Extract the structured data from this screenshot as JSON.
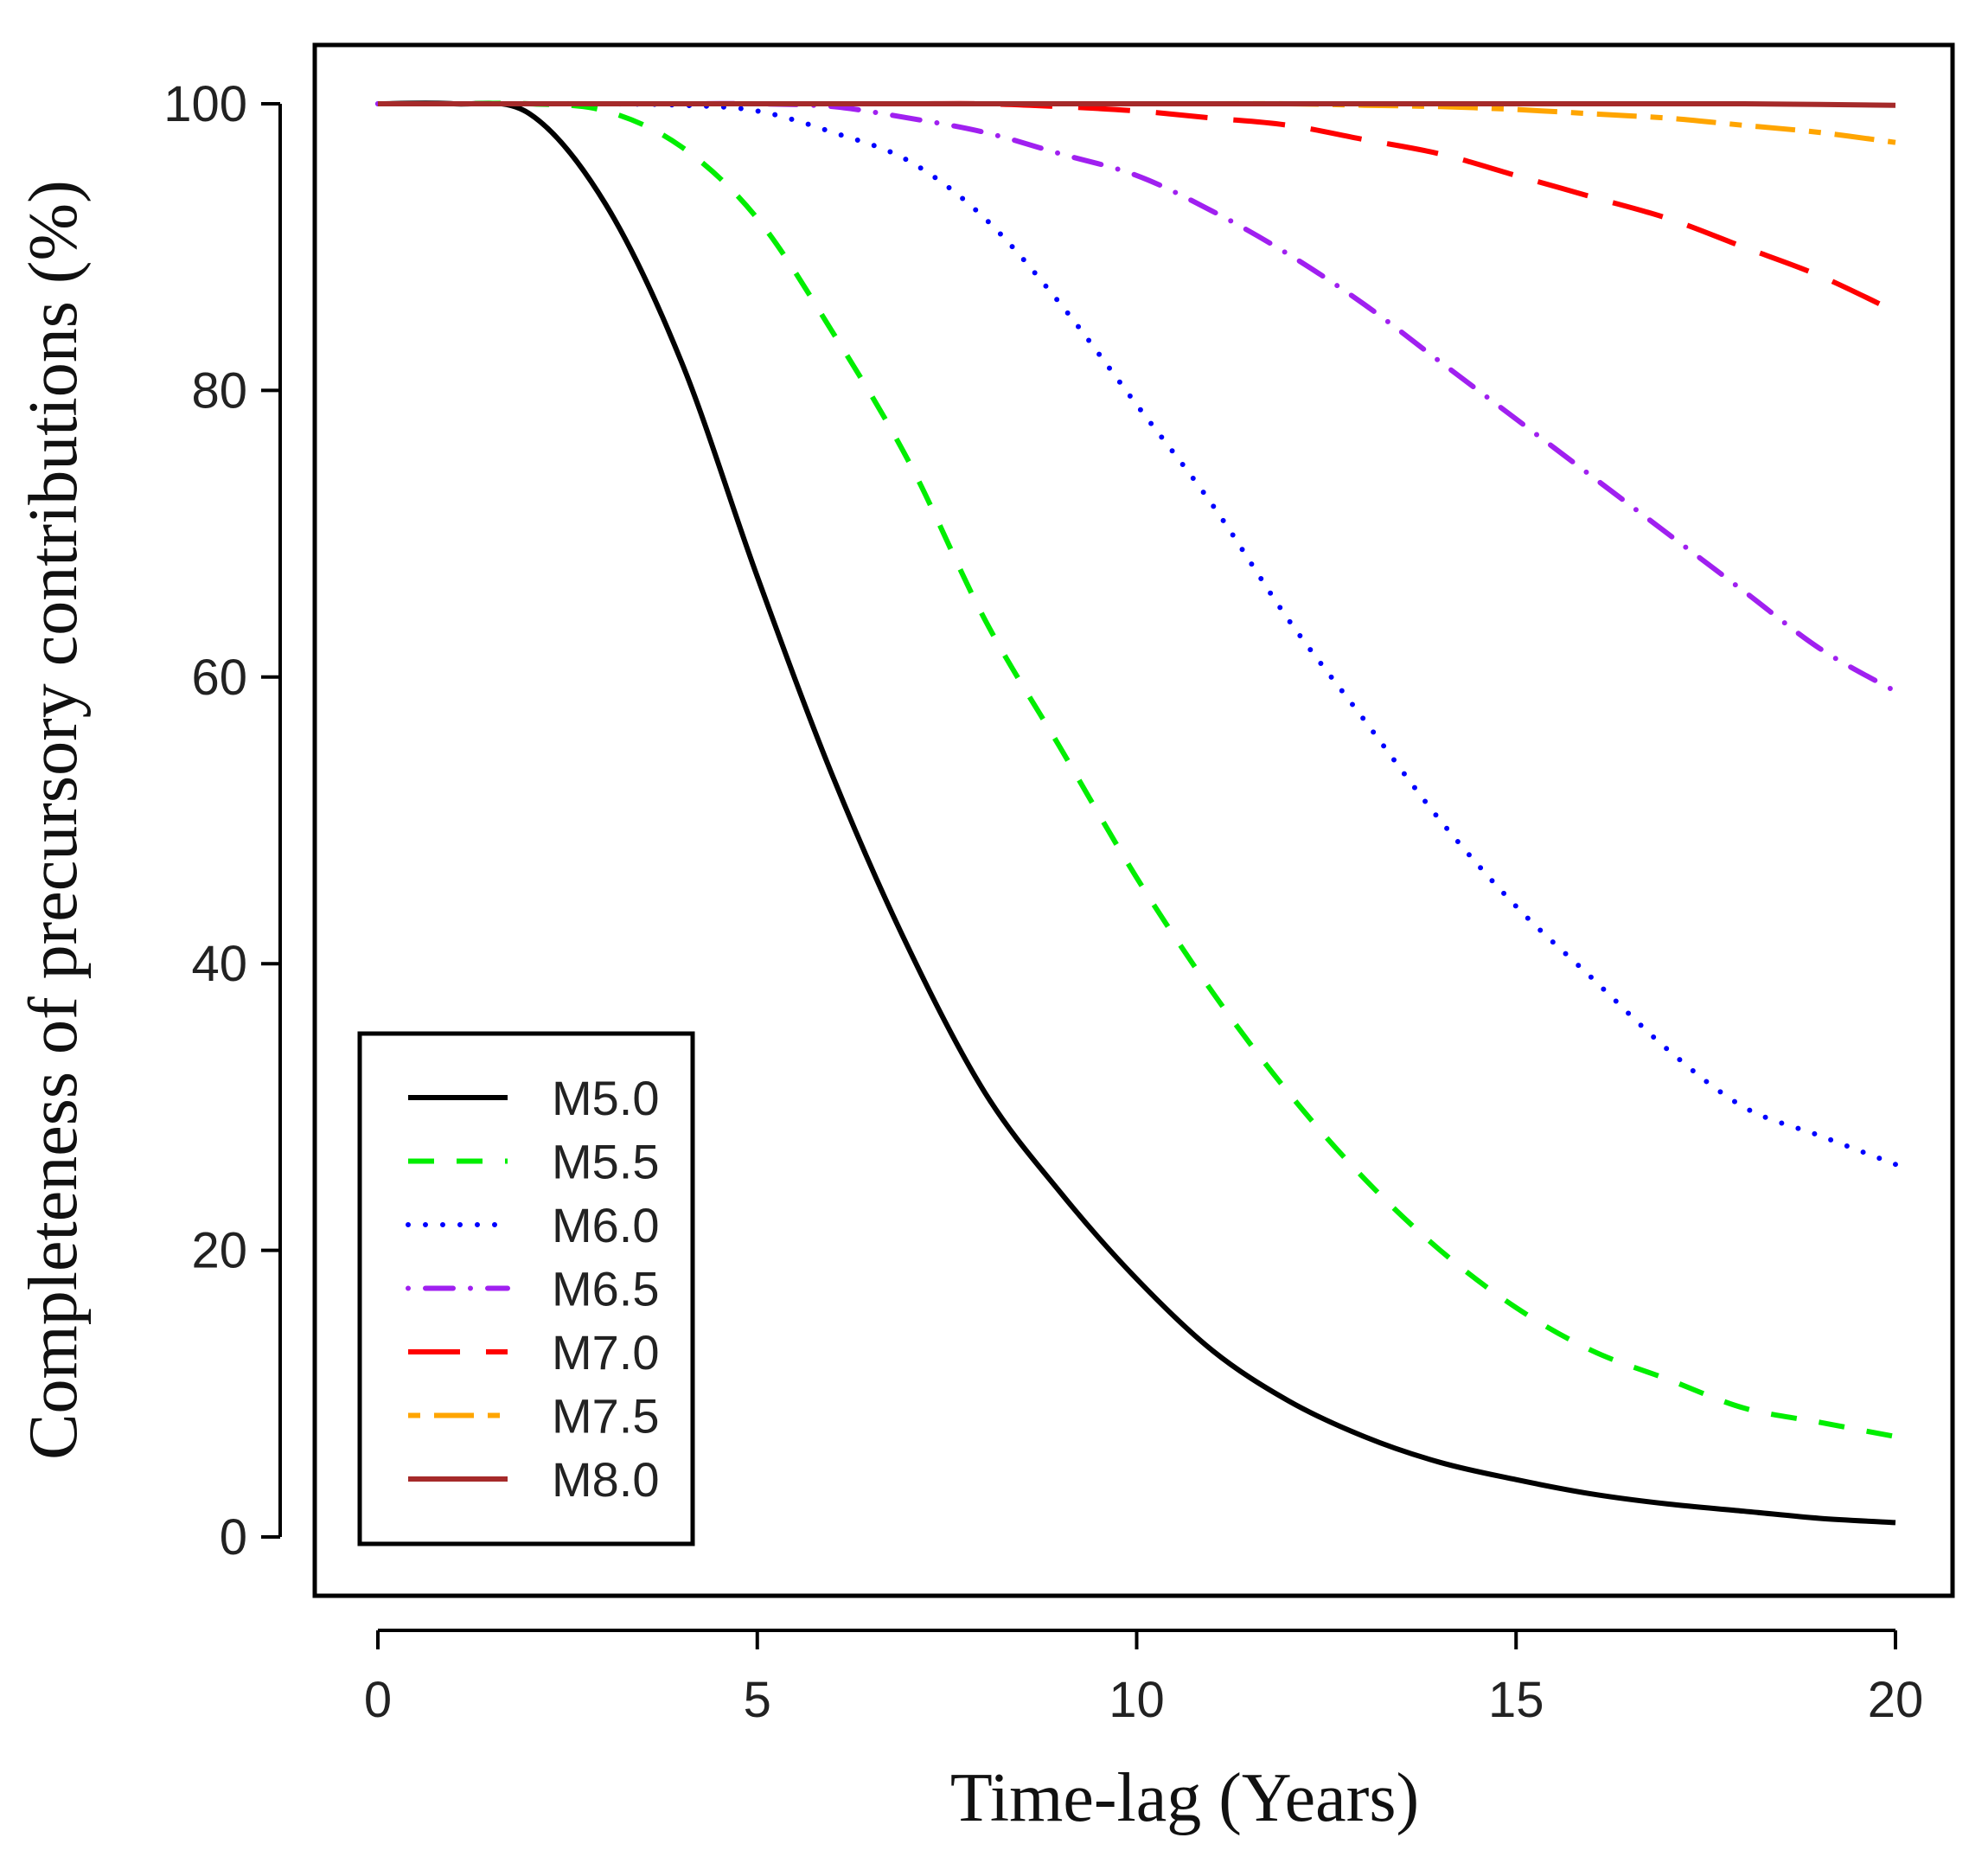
{
  "chart_data": {
    "type": "line",
    "title": "",
    "xlabel": "Time-lag (Years)",
    "ylabel": "Completeness of precursory contributions (%)",
    "xlim": [
      0,
      20
    ],
    "ylim": [
      0,
      100
    ],
    "xticks": [
      0,
      5,
      10,
      15,
      20
    ],
    "yticks": [
      0,
      20,
      40,
      60,
      80,
      100
    ],
    "grid": false,
    "legend_position": "bottom-left",
    "x": [
      0,
      1,
      2,
      3,
      4,
      5,
      6,
      7,
      8,
      9,
      10,
      11,
      12,
      13,
      14,
      15,
      16,
      17,
      18,
      19,
      20
    ],
    "series": [
      {
        "name": "M5.0",
        "color": "#000000",
        "dash": "solid",
        "values": [
          100,
          100,
          99.3,
          93,
          82,
          67,
          53,
          41,
          31,
          24,
          18,
          13,
          9.5,
          7,
          5.2,
          4,
          3,
          2.3,
          1.8,
          1.3,
          1
        ]
      },
      {
        "name": "M5.5",
        "color": "#00ee00",
        "dash": "dashed",
        "values": [
          100,
          100,
          100,
          99.5,
          97,
          92,
          84,
          75,
          64,
          55,
          46,
          38,
          31,
          25,
          20,
          16,
          13,
          11,
          9,
          8,
          7
        ]
      },
      {
        "name": "M6.0",
        "color": "#0000ff",
        "dash": "dotted",
        "values": [
          100,
          100,
          100,
          100,
          99.9,
          99.5,
          98,
          96,
          92,
          86,
          79,
          72,
          64,
          57,
          50,
          44,
          39,
          34,
          30,
          28,
          26
        ]
      },
      {
        "name": "M6.5",
        "color": "#a020f0",
        "dash": "dotdash",
        "values": [
          100,
          100,
          100,
          100,
          100,
          100,
          99.8,
          99,
          98,
          96.5,
          95,
          92.5,
          89.5,
          86,
          82,
          78,
          74,
          70,
          66,
          62,
          59
        ]
      },
      {
        "name": "M7.0",
        "color": "#ff0000",
        "dash": "longdash",
        "values": [
          100,
          100,
          100,
          100,
          100,
          100,
          100,
          100,
          100,
          99.8,
          99.5,
          99,
          98.5,
          97.5,
          96.5,
          95,
          93.5,
          92,
          90,
          88,
          85.5
        ]
      },
      {
        "name": "M7.5",
        "color": "#ffa500",
        "dash": "twodash",
        "values": [
          100,
          100,
          100,
          100,
          100,
          100,
          100,
          100,
          100,
          100,
          100,
          100,
          100,
          99.9,
          99.8,
          99.6,
          99.3,
          99,
          98.5,
          98,
          97.3
        ]
      },
      {
        "name": "M8.0",
        "color": "#a52a2a",
        "dash": "solid",
        "values": [
          100,
          100,
          100,
          100,
          100,
          100,
          100,
          100,
          100,
          100,
          100,
          100,
          100,
          100,
          100,
          100,
          100,
          100,
          100,
          99.95,
          99.9
        ]
      }
    ]
  }
}
